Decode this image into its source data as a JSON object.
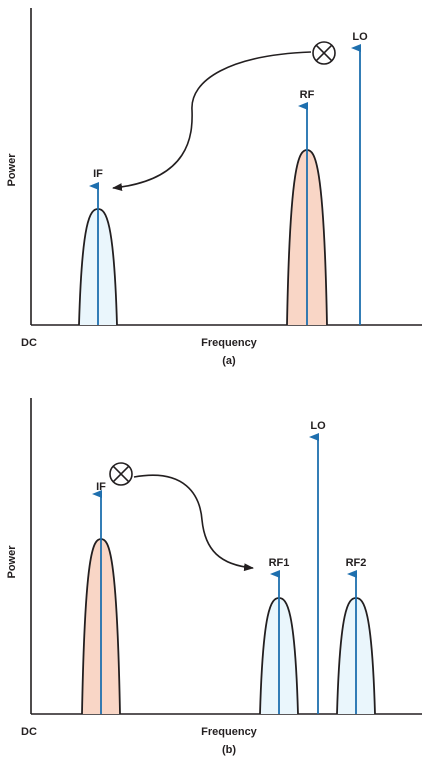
{
  "colors": {
    "axis": "#231f20",
    "stem": "#1e6fae",
    "peak_blue": "#eaf6fc",
    "peak_salmon": "#f9d6c6"
  },
  "panel_a": {
    "axis_x_label": "Frequency",
    "axis_y_label": "Power",
    "origin_label": "DC",
    "caption": "(a)",
    "signals": {
      "if": "IF",
      "rf": "RF",
      "lo": "LO"
    },
    "mixer_icon": "mixer-multiply-icon"
  },
  "panel_b": {
    "axis_x_label": "Frequency",
    "axis_y_label": "Power",
    "origin_label": "DC",
    "caption": "(b)",
    "signals": {
      "if": "IF",
      "lo": "LO",
      "rf1": "RF1",
      "rf2": "RF2"
    },
    "mixer_icon": "mixer-multiply-icon"
  }
}
